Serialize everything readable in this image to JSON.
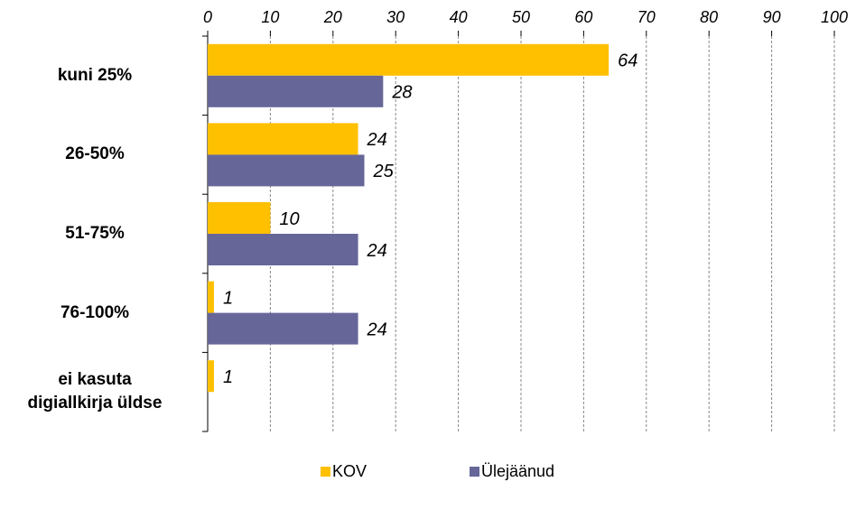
{
  "chart_data": {
    "type": "bar",
    "orientation": "horizontal",
    "categories": [
      "kuni 25%",
      "26-50%",
      "51-75%",
      "76-100%",
      "ei kasuta\ndigiallkirja üldse"
    ],
    "series": [
      {
        "name": "KOV",
        "color": "#ffc000",
        "values": [
          64,
          24,
          10,
          1,
          1
        ]
      },
      {
        "name": "Ülejäänud",
        "color": "#666699",
        "values": [
          28,
          25,
          24,
          24,
          null
        ]
      }
    ],
    "xlim": [
      0,
      100
    ],
    "xticks": [
      0,
      10,
      20,
      30,
      40,
      50,
      60,
      70,
      80,
      90,
      100
    ],
    "grid": true,
    "legend": "bottom"
  }
}
